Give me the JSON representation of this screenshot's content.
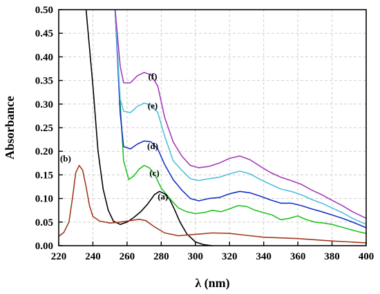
{
  "chart_data": {
    "type": "line",
    "xlabel": "λ (nm)",
    "ylabel": "Absorbance",
    "xlim": [
      220,
      400
    ],
    "ylim": [
      0.0,
      0.5
    ],
    "grid": true,
    "x_ticks": [
      "220",
      "240",
      "260",
      "280",
      "300",
      "320",
      "340",
      "360",
      "380",
      "400"
    ],
    "y_ticks": [
      "0.00",
      "0.05",
      "0.10",
      "0.15",
      "0.20",
      "0.25",
      "0.30",
      "0.35",
      "0.40",
      "0.45",
      "0.50"
    ],
    "series": [
      {
        "name": "(a)",
        "color": "#000000",
        "label_at": [
          281,
          0.098
        ],
        "points": [
          [
            236,
            0.5
          ],
          [
            240,
            0.34
          ],
          [
            243,
            0.2
          ],
          [
            246,
            0.12
          ],
          [
            249,
            0.075
          ],
          [
            252,
            0.052
          ],
          [
            256,
            0.045
          ],
          [
            260,
            0.05
          ],
          [
            264,
            0.06
          ],
          [
            268,
            0.072
          ],
          [
            272,
            0.088
          ],
          [
            276,
            0.108
          ],
          [
            279,
            0.115
          ],
          [
            282,
            0.11
          ],
          [
            285,
            0.098
          ],
          [
            288,
            0.075
          ],
          [
            291,
            0.05
          ],
          [
            295,
            0.025
          ],
          [
            300,
            0.008
          ],
          [
            305,
            0.002
          ],
          [
            310,
            0.0
          ]
        ]
      },
      {
        "name": "(b)",
        "color": "#a0391c",
        "label_at": [
          224,
          0.178
        ],
        "points": [
          [
            220,
            0.02
          ],
          [
            223,
            0.028
          ],
          [
            226,
            0.05
          ],
          [
            228,
            0.1
          ],
          [
            230,
            0.155
          ],
          [
            232,
            0.17
          ],
          [
            234,
            0.16
          ],
          [
            236,
            0.125
          ],
          [
            238,
            0.085
          ],
          [
            240,
            0.062
          ],
          [
            244,
            0.052
          ],
          [
            250,
            0.048
          ],
          [
            256,
            0.05
          ],
          [
            262,
            0.053
          ],
          [
            267,
            0.056
          ],
          [
            271,
            0.053
          ],
          [
            276,
            0.04
          ],
          [
            282,
            0.027
          ],
          [
            290,
            0.021
          ],
          [
            300,
            0.024
          ],
          [
            310,
            0.027
          ],
          [
            320,
            0.026
          ],
          [
            330,
            0.022
          ],
          [
            340,
            0.018
          ],
          [
            360,
            0.015
          ],
          [
            380,
            0.01
          ],
          [
            400,
            0.006
          ]
        ]
      },
      {
        "name": "(c)",
        "color": "#22c122",
        "label_at": [
          276,
          0.148
        ],
        "points": [
          [
            253,
            0.5
          ],
          [
            256,
            0.3
          ],
          [
            258,
            0.18
          ],
          [
            261,
            0.14
          ],
          [
            264,
            0.148
          ],
          [
            267,
            0.162
          ],
          [
            270,
            0.17
          ],
          [
            273,
            0.165
          ],
          [
            276,
            0.152
          ],
          [
            280,
            0.122
          ],
          [
            285,
            0.1
          ],
          [
            290,
            0.08
          ],
          [
            295,
            0.072
          ],
          [
            300,
            0.068
          ],
          [
            305,
            0.07
          ],
          [
            310,
            0.075
          ],
          [
            315,
            0.072
          ],
          [
            320,
            0.078
          ],
          [
            325,
            0.085
          ],
          [
            330,
            0.083
          ],
          [
            335,
            0.075
          ],
          [
            340,
            0.07
          ],
          [
            345,
            0.065
          ],
          [
            350,
            0.055
          ],
          [
            355,
            0.058
          ],
          [
            360,
            0.063
          ],
          [
            365,
            0.055
          ],
          [
            370,
            0.05
          ],
          [
            375,
            0.048
          ],
          [
            380,
            0.045
          ],
          [
            385,
            0.04
          ],
          [
            390,
            0.035
          ],
          [
            395,
            0.03
          ],
          [
            400,
            0.026
          ]
        ]
      },
      {
        "name": "(d)",
        "color": "#1630c8",
        "label_at": [
          275,
          0.205
        ],
        "points": [
          [
            253,
            0.5
          ],
          [
            256,
            0.28
          ],
          [
            258,
            0.21
          ],
          [
            262,
            0.205
          ],
          [
            266,
            0.215
          ],
          [
            270,
            0.222
          ],
          [
            274,
            0.22
          ],
          [
            278,
            0.205
          ],
          [
            282,
            0.172
          ],
          [
            287,
            0.14
          ],
          [
            292,
            0.118
          ],
          [
            297,
            0.1
          ],
          [
            302,
            0.095
          ],
          [
            308,
            0.1
          ],
          [
            314,
            0.102
          ],
          [
            320,
            0.11
          ],
          [
            326,
            0.115
          ],
          [
            332,
            0.112
          ],
          [
            338,
            0.105
          ],
          [
            344,
            0.097
          ],
          [
            350,
            0.09
          ],
          [
            356,
            0.09
          ],
          [
            362,
            0.085
          ],
          [
            368,
            0.078
          ],
          [
            374,
            0.072
          ],
          [
            380,
            0.065
          ],
          [
            386,
            0.058
          ],
          [
            392,
            0.05
          ],
          [
            400,
            0.038
          ]
        ]
      },
      {
        "name": "(e)",
        "color": "#4cc0dc",
        "label_at": [
          275,
          0.29
        ],
        "points": [
          [
            253,
            0.5
          ],
          [
            256,
            0.31
          ],
          [
            258,
            0.285
          ],
          [
            262,
            0.282
          ],
          [
            266,
            0.295
          ],
          [
            270,
            0.302
          ],
          [
            274,
            0.298
          ],
          [
            278,
            0.282
          ],
          [
            282,
            0.232
          ],
          [
            287,
            0.18
          ],
          [
            292,
            0.16
          ],
          [
            297,
            0.142
          ],
          [
            302,
            0.138
          ],
          [
            308,
            0.142
          ],
          [
            314,
            0.145
          ],
          [
            320,
            0.152
          ],
          [
            326,
            0.158
          ],
          [
            332,
            0.152
          ],
          [
            338,
            0.14
          ],
          [
            344,
            0.13
          ],
          [
            350,
            0.12
          ],
          [
            356,
            0.115
          ],
          [
            362,
            0.108
          ],
          [
            368,
            0.098
          ],
          [
            374,
            0.09
          ],
          [
            380,
            0.08
          ],
          [
            386,
            0.07
          ],
          [
            392,
            0.058
          ],
          [
            400,
            0.045
          ]
        ]
      },
      {
        "name": "(f)",
        "color": "#a23ab8",
        "label_at": [
          275,
          0.352
        ],
        "points": [
          [
            253,
            0.5
          ],
          [
            256,
            0.38
          ],
          [
            258,
            0.345
          ],
          [
            262,
            0.345
          ],
          [
            266,
            0.36
          ],
          [
            270,
            0.367
          ],
          [
            274,
            0.362
          ],
          [
            278,
            0.338
          ],
          [
            282,
            0.272
          ],
          [
            287,
            0.22
          ],
          [
            292,
            0.19
          ],
          [
            297,
            0.17
          ],
          [
            302,
            0.165
          ],
          [
            308,
            0.168
          ],
          [
            314,
            0.175
          ],
          [
            320,
            0.185
          ],
          [
            326,
            0.19
          ],
          [
            332,
            0.182
          ],
          [
            338,
            0.168
          ],
          [
            344,
            0.155
          ],
          [
            350,
            0.145
          ],
          [
            356,
            0.138
          ],
          [
            362,
            0.13
          ],
          [
            368,
            0.118
          ],
          [
            374,
            0.108
          ],
          [
            380,
            0.096
          ],
          [
            386,
            0.085
          ],
          [
            392,
            0.072
          ],
          [
            400,
            0.058
          ]
        ]
      }
    ]
  }
}
